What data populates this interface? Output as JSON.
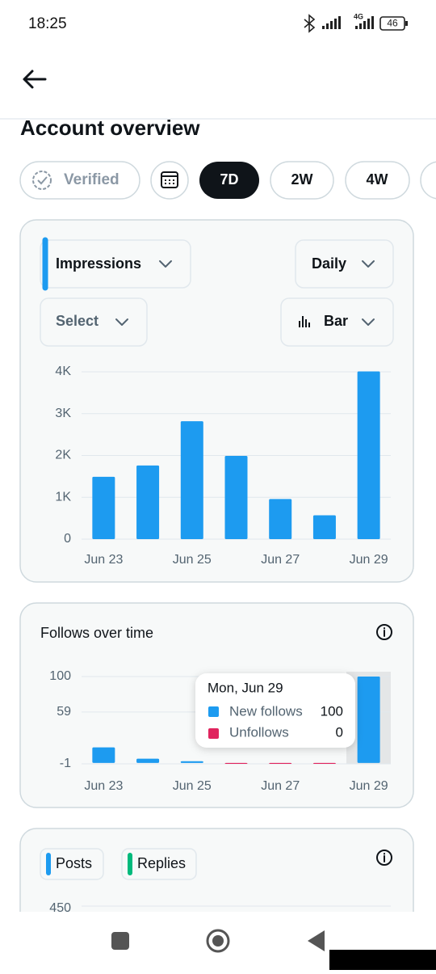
{
  "status_bar": {
    "time": "18:25",
    "network": "4G",
    "battery": "46"
  },
  "header": {
    "title": "Account overview"
  },
  "filters": {
    "verified": "Verified",
    "ranges": [
      "7D",
      "2W",
      "4W"
    ]
  },
  "impressions_card": {
    "metric": "Impressions",
    "interval": "Daily",
    "compare": "Select",
    "chart_style": "Bar",
    "chart_data": {
      "type": "bar",
      "categories": [
        "Jun 23",
        null,
        "Jun 25",
        null,
        "Jun 27",
        null,
        "Jun 29"
      ],
      "values": [
        1490,
        1760,
        2820,
        1990,
        960,
        570,
        4010
      ],
      "color": "#1d9bf0",
      "ylim": [
        0,
        4000
      ],
      "yticks": [
        0,
        {
          "value": 1000,
          "label": "1K"
        },
        {
          "value": 2000,
          "label": "2K"
        },
        {
          "value": 3000,
          "label": "3K"
        },
        {
          "value": 4000,
          "label": "4K"
        }
      ],
      "grid": true
    }
  },
  "follows_card": {
    "title": "Follows over time",
    "chart_data": {
      "type": "bar",
      "categories": [
        "Jun 23",
        null,
        "Jun 25",
        null,
        "Jun 27",
        null,
        "Jun 29"
      ],
      "series": [
        {
          "name": "New follows",
          "color": "#1d9bf0",
          "values": [
            18,
            5,
            2,
            0,
            0,
            0,
            100
          ]
        },
        {
          "name": "Unfollows",
          "color": "#e0245e",
          "values": [
            0,
            0,
            0,
            1,
            1,
            1,
            0
          ]
        }
      ],
      "ylim": [
        -1,
        100
      ],
      "yticks": [
        -1,
        59,
        100
      ],
      "grid": true,
      "tooltip": {
        "title": "Mon, Jun 29"
      }
    }
  },
  "posts_card": {
    "chart_data": {
      "type": "bar",
      "series": [
        {
          "name": "Posts",
          "color": "#1d9bf0"
        },
        {
          "name": "Replies",
          "color": "#00ba7c"
        }
      ],
      "yticks": [
        450
      ],
      "grid": true
    }
  }
}
